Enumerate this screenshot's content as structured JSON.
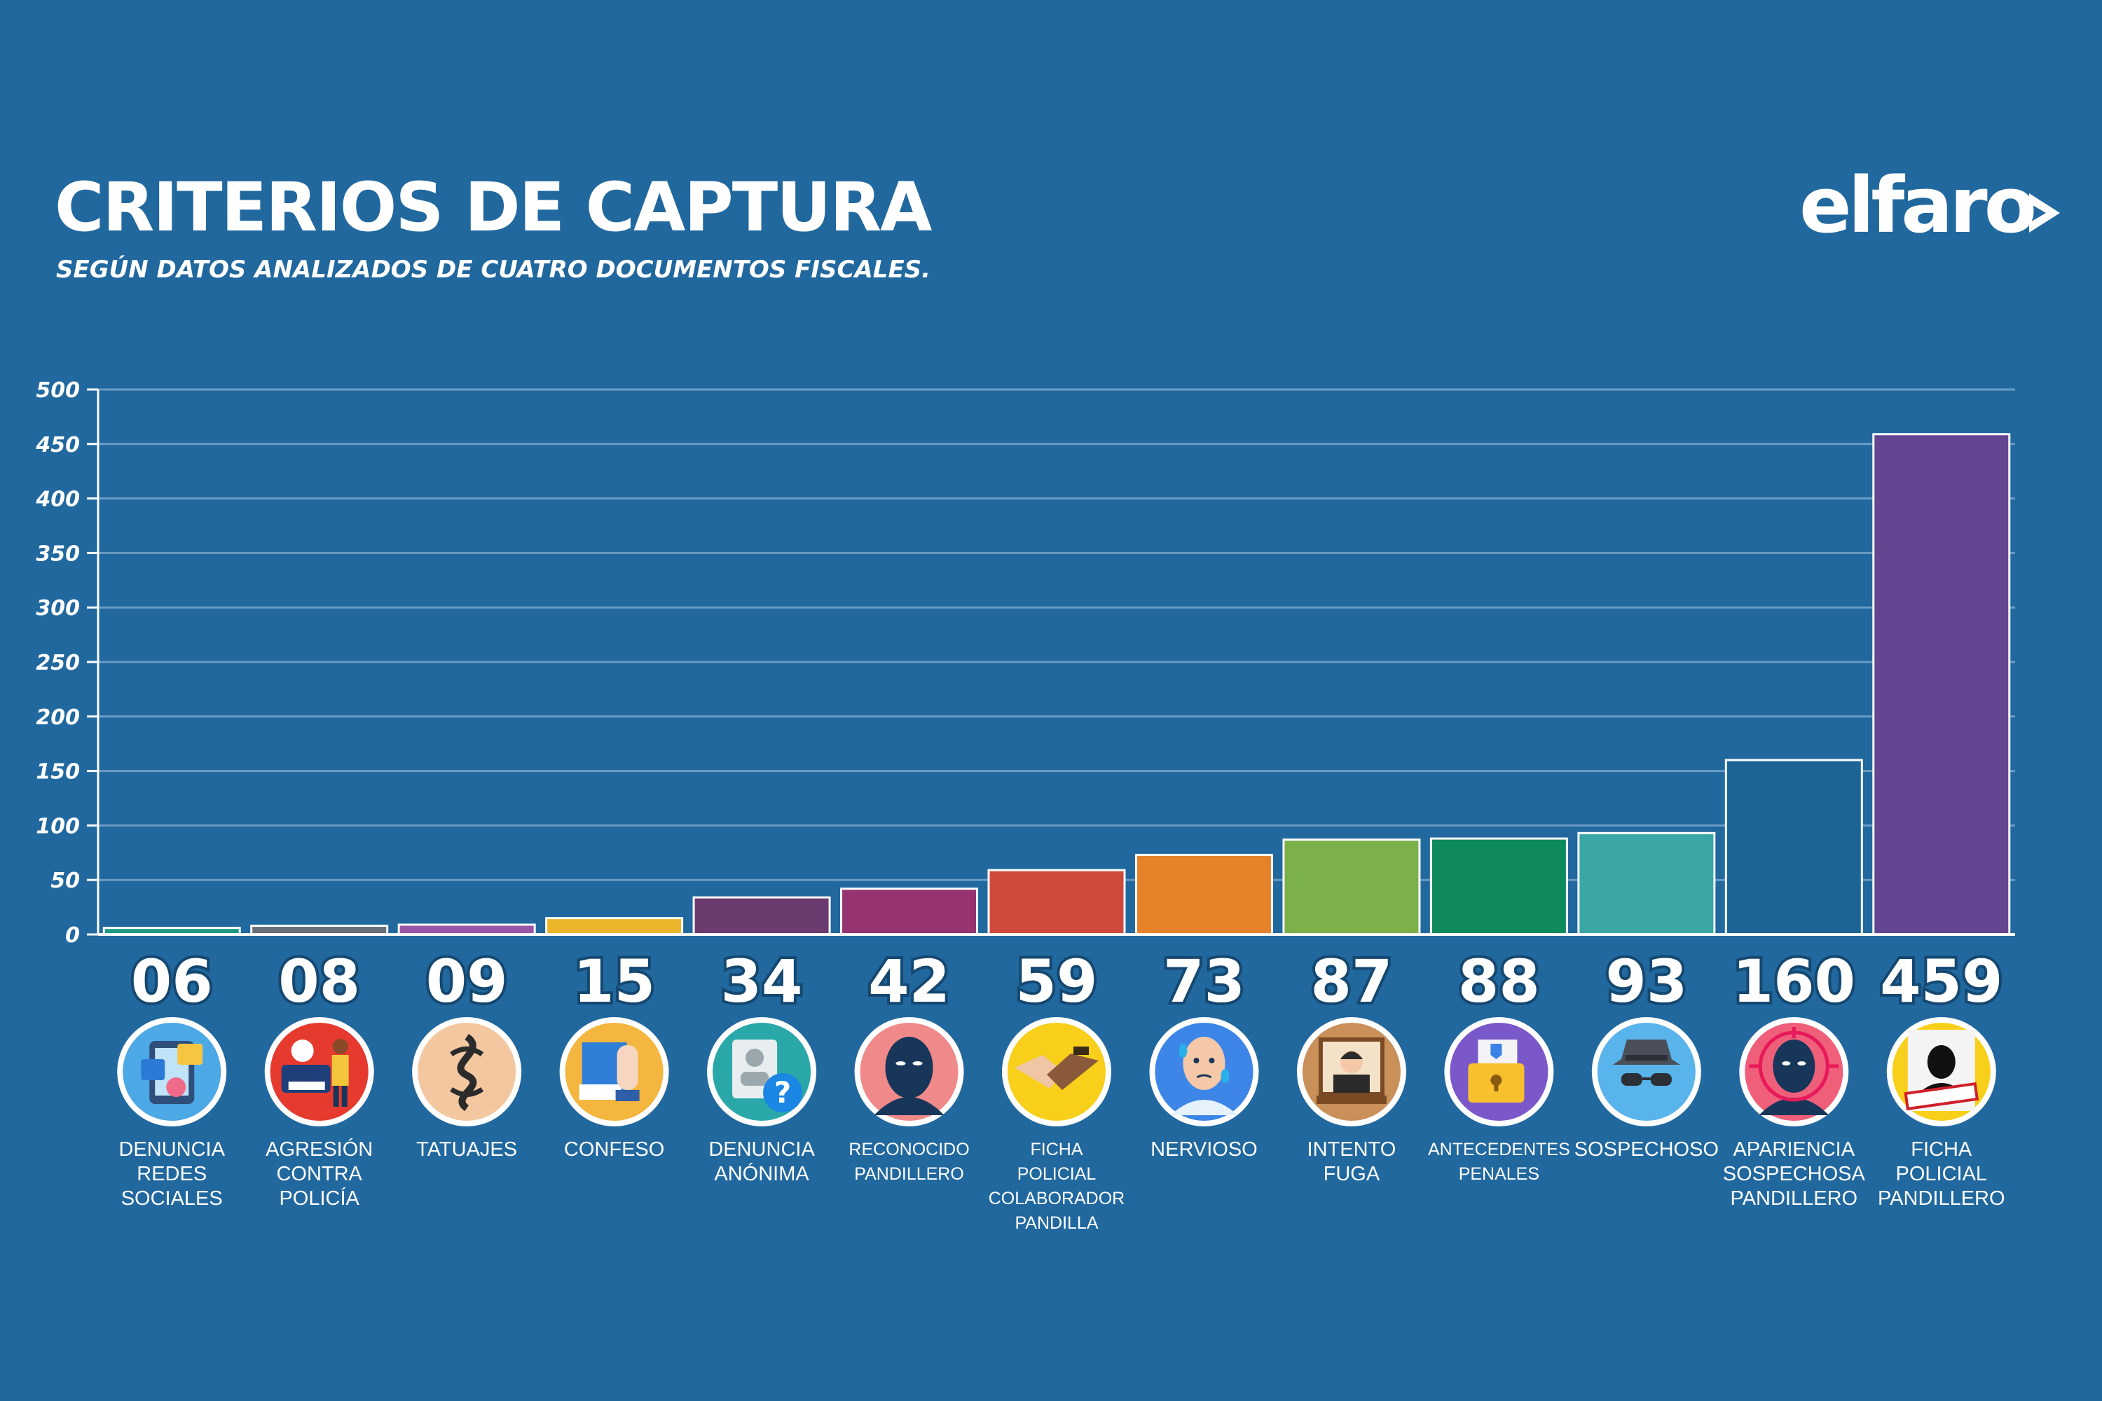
{
  "header": {
    "title": "CRITERIOS DE CAPTURA",
    "subtitle": "SEGÚN DATOS ANALIZADOS DE CUATRO DOCUMENTOS FISCALES.",
    "logo": "elfaro"
  },
  "colors": {
    "background": "#21689e",
    "gridline": "#6a9cc4",
    "text": "#ffffff"
  },
  "chart_data": {
    "type": "bar",
    "title": "CRITERIOS DE CAPTURA",
    "subtitle": "SEGÚN DATOS ANALIZADOS DE CUATRO DOCUMENTOS FISCALES.",
    "xlabel": "",
    "ylabel": "",
    "ylim": [
      0,
      500
    ],
    "yticks": [
      0,
      50,
      100,
      150,
      200,
      250,
      300,
      350,
      400,
      450,
      500
    ],
    "ytick_labels": [
      "0",
      "50",
      "100",
      "150",
      "200",
      "250",
      "300",
      "350",
      "400",
      "450",
      "500"
    ],
    "grid": true,
    "legend": "none",
    "categories": [
      [
        "DENUNCIA",
        "REDES",
        "SOCIALES"
      ],
      [
        "AGRESIÓN",
        "CONTRA",
        "POLICÍA"
      ],
      [
        "TATUAJES"
      ],
      [
        "CONFESO"
      ],
      [
        "DENUNCIA",
        "ANÓNIMA"
      ],
      [
        "RECONOCIDO",
        "PANDILLERO"
      ],
      [
        "FICHA",
        "POLICIAL",
        "COLABORADOR",
        "PANDILLA"
      ],
      [
        "NERVIOSO"
      ],
      [
        "INTENTO",
        "FUGA"
      ],
      [
        "ANTECEDENTES",
        "PENALES"
      ],
      [
        "SOSPECHOSO"
      ],
      [
        "APARIENCIA",
        "SOSPECHOSA",
        "PANDILLERO"
      ],
      [
        "FICHA",
        "POLICIAL",
        "PANDILLERO"
      ]
    ],
    "values": [
      6,
      8,
      9,
      15,
      34,
      42,
      59,
      73,
      87,
      88,
      93,
      160,
      459
    ],
    "value_labels": [
      "06",
      "08",
      "09",
      "15",
      "34",
      "42",
      "59",
      "73",
      "87",
      "88",
      "93",
      "160",
      "459"
    ],
    "bar_colors": [
      "#1f9a82",
      "#6a7078",
      "#9b55a6",
      "#edb52b",
      "#6b3a6f",
      "#96346f",
      "#cf4a3c",
      "#e6822a",
      "#7cb04b",
      "#0e8a5c",
      "#3aa6a6",
      "#1c6496",
      "#634691"
    ],
    "icons": [
      "social-media-icon",
      "police-aggression-icon",
      "tattoo-icon",
      "confession-icon",
      "anonymous-report-icon",
      "masked-gang-member-icon",
      "handshake-icon",
      "nervous-face-icon",
      "escape-window-icon",
      "criminal-record-folder-icon",
      "detective-icon",
      "target-face-icon",
      "mugshot-icon"
    ],
    "icon_backgrounds": [
      "#4da8e6",
      "#e63a2e",
      "#f3c8a0",
      "#f4b63f",
      "#2aa7a8",
      "#f08a8a",
      "#f8cf1a",
      "#3d86e8",
      "#c9905a",
      "#7a58c9",
      "#5ab4ec",
      "#ef5f7a",
      "#f8cf1a"
    ],
    "small_label_indices": [
      5,
      6,
      9
    ]
  }
}
